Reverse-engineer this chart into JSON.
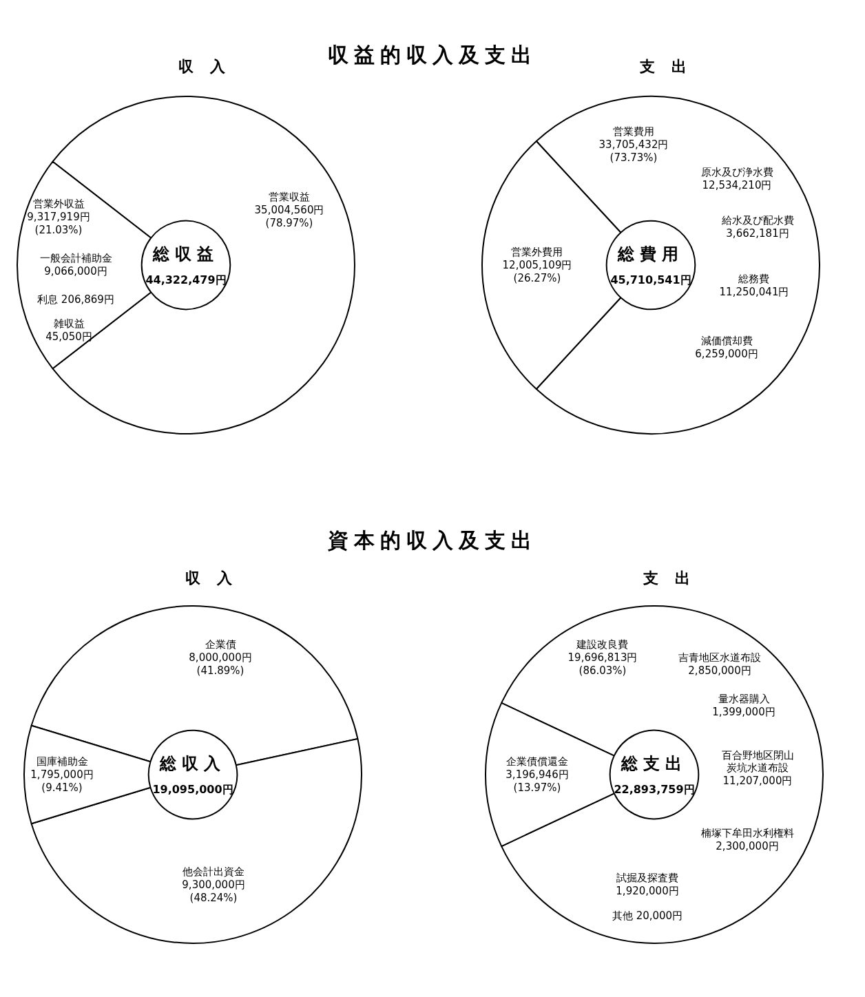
{
  "chart_data": [
    {
      "type": "donut",
      "title": "収益的収入及支出",
      "subtitle": "収入",
      "categories": [
        "営業収益",
        "営業外収益"
      ],
      "values": [
        35004560,
        9317919
      ],
      "colors": [
        "#ffffff",
        "#ffffff"
      ],
      "value_labels": [
        "35,004,560円\n(78.97%)",
        "9,317,919円\n(21.03%)"
      ],
      "annotations": [
        "総収益",
        "44,322,479円",
        "一般会計補助金\n9,066,000円",
        "利息 206,869円",
        "雑収益\n45,050円"
      ]
    },
    {
      "type": "donut",
      "subtitle": "支出",
      "categories": [
        "営業費用",
        "営業外費用"
      ],
      "values": [
        33705432,
        12005109
      ],
      "colors": [
        "#ffffff",
        "#ffffff"
      ],
      "value_labels": [
        "33,705,432円\n(73.73%)",
        "12,005,109円\n(26.27%)"
      ],
      "annotations": [
        "総費用",
        "45,710,541円",
        "原水及び浄水費\n12,534,210円",
        "給水及び配水費\n3,662,181円",
        "総務費\n11,250,041円",
        "減価償却費\n6,259,000円"
      ]
    },
    {
      "type": "donut",
      "title": "資本的収入及支出",
      "subtitle": "収入",
      "categories": [
        "企業債",
        "他会計出資金",
        "国庫補助金"
      ],
      "values": [
        8000000,
        9300000,
        1795000
      ],
      "colors": [
        "#ffffff",
        "#ffffff",
        "#ffffff"
      ],
      "value_labels": [
        "8,000,000円\n(41.89%)",
        "9,300,000円\n(48.24%)",
        "1,795,000円\n(9.41%)"
      ],
      "annotations": [
        "総収入",
        "19,095,000円"
      ]
    },
    {
      "type": "donut",
      "subtitle": "支出",
      "categories": [
        "建設改良費",
        "企業債償還金"
      ],
      "values": [
        19696813,
        3196946
      ],
      "colors": [
        "#ffffff",
        "#ffffff"
      ],
      "value_labels": [
        "19,696,813円\n(86.03%)",
        "3,196,946円\n(13.97%)"
      ],
      "annotations": [
        "総支出",
        "22,893,759円",
        "吉青地区水道布設\n2,850,000円",
        "量水器購入\n1,399,000円",
        "百合野地区閉山",
        "炭坑水道布設\n11,207,000円",
        "楠塚下牟田水利権料\n2,300,000円",
        "試掘及探査費\n1,920,000円",
        "其他 20,000円"
      ]
    }
  ]
}
